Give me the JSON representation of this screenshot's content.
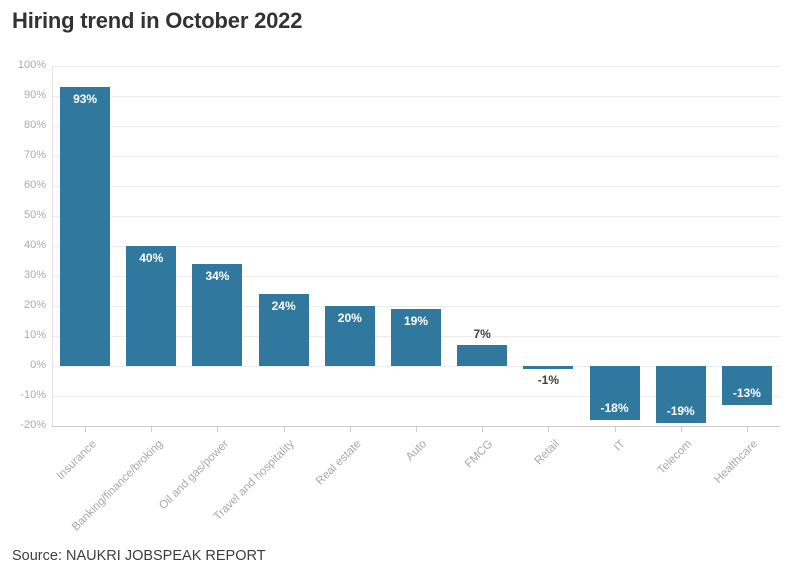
{
  "page": {
    "title": "Hiring trend in October 2022",
    "source": "Source: NAUKRI JOBSPEAK REPORT"
  },
  "colors": {
    "bar": "#31789F",
    "title_text": "#333333",
    "axis_text": "#ababab",
    "grid_line": "#ececec",
    "bottom_axis_line": "#c9c9c9",
    "label_inside_bar": "#ffffff",
    "label_outside_bar": "#404040"
  },
  "chart_data": {
    "type": "bar",
    "title": "Hiring trend in October 2022",
    "categories": [
      "Insurance",
      "Banking/finance/broking",
      "Oil and gas/power",
      "Travel and hospitality",
      "Real estate",
      "Auto",
      "FMCG",
      "Retail",
      "IT",
      "Telecom",
      "Healthcare"
    ],
    "values": [
      93,
      40,
      34,
      24,
      20,
      19,
      7,
      -1,
      -18,
      -19,
      -13
    ],
    "value_labels": [
      "93%",
      "40%",
      "34%",
      "24%",
      "20%",
      "19%",
      "7%",
      "-1%",
      "-18%",
      "-19%",
      "-13%"
    ],
    "xlabel": "",
    "ylabel": "",
    "ylim": [
      -20,
      100
    ],
    "y_ticks": [
      100,
      90,
      80,
      70,
      60,
      50,
      40,
      30,
      20,
      10,
      0,
      -10,
      -20
    ],
    "y_tick_labels": [
      "100%",
      "90%",
      "80%",
      "70%",
      "60%",
      "50%",
      "40%",
      "30%",
      "20%",
      "10%",
      "0%",
      "-10%",
      "-20%"
    ],
    "grid": true,
    "legend": false,
    "bar_color": "#31789F",
    "source": "Source: NAUKRI JOBSPEAK REPORT"
  }
}
